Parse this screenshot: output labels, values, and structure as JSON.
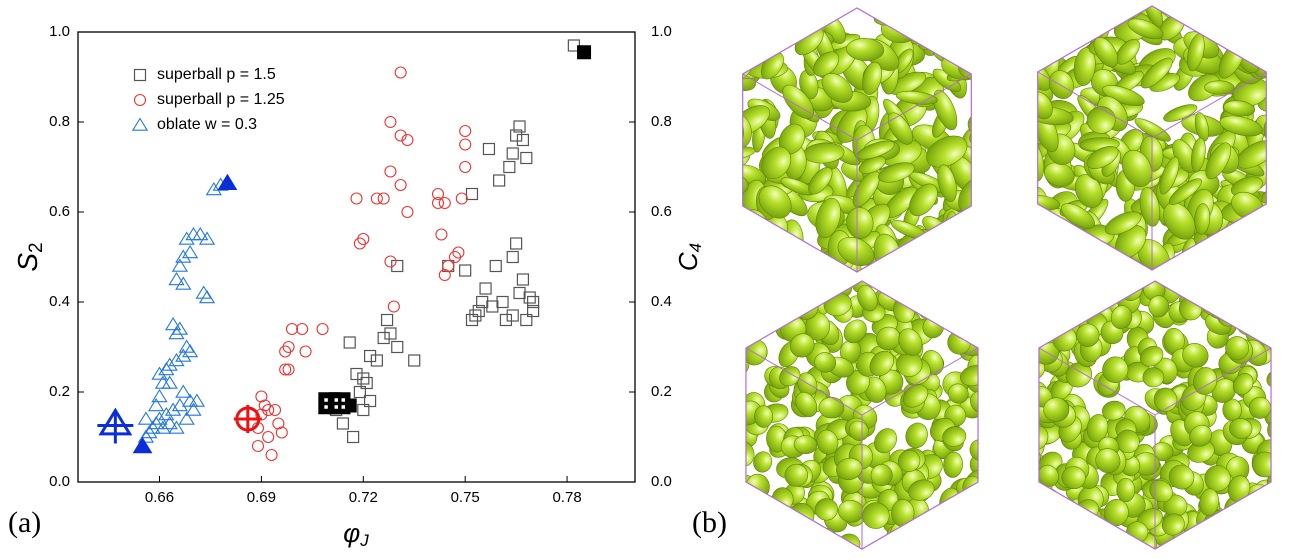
{
  "chart_data": {
    "type": "scatter",
    "panel_label": "(a)",
    "xlabel": {
      "main": "φ",
      "sub": "J"
    },
    "ylabel": {
      "main": "S",
      "sub": "2"
    },
    "y2label": {
      "main": "C",
      "sub": "4"
    },
    "xlim": [
      0.636,
      0.8
    ],
    "xticks": [
      0.66,
      0.69,
      0.72,
      0.75,
      0.78
    ],
    "ylim": [
      0,
      1
    ],
    "yticks": [
      {
        "value": 0,
        "label": "0.0"
      },
      0.2,
      0.4,
      0.6,
      0.8,
      {
        "value": 1,
        "label": "1.0"
      }
    ],
    "y2lim": [
      0,
      1
    ],
    "y2ticks": [
      {
        "value": 0,
        "label": "0.0"
      },
      0.2,
      0.4,
      0.6,
      0.8,
      {
        "value": 1,
        "label": "1.0"
      }
    ],
    "legend": "upper left",
    "series": [
      {
        "name": "superball p = 1.5",
        "color": "#555555",
        "marker": "square",
        "x": [
          0.782,
          0.757,
          0.752,
          0.765,
          0.766,
          0.767,
          0.763,
          0.768,
          0.76,
          0.764,
          0.765,
          0.764,
          0.759,
          0.745,
          0.75,
          0.73,
          0.767,
          0.766,
          0.769,
          0.77,
          0.77,
          0.768,
          0.762,
          0.764,
          0.761,
          0.756,
          0.755,
          0.754,
          0.753,
          0.752,
          0.758,
          0.727,
          0.726,
          0.728,
          0.73,
          0.724,
          0.722,
          0.735,
          0.72,
          0.718,
          0.721,
          0.719,
          0.722,
          0.72,
          0.716,
          0.712,
          0.714,
          0.717
        ],
        "values": [
          0.97,
          0.74,
          0.64,
          0.77,
          0.79,
          0.76,
          0.7,
          0.72,
          0.67,
          0.73,
          0.53,
          0.5,
          0.48,
          0.48,
          0.47,
          0.48,
          0.45,
          0.42,
          0.41,
          0.4,
          0.38,
          0.36,
          0.36,
          0.37,
          0.4,
          0.43,
          0.4,
          0.38,
          0.37,
          0.36,
          0.39,
          0.36,
          0.32,
          0.33,
          0.3,
          0.27,
          0.28,
          0.27,
          0.23,
          0.24,
          0.22,
          0.2,
          0.18,
          0.16,
          0.31,
          0.16,
          0.13,
          0.1
        ]
      },
      {
        "name": "superball p = 1.25",
        "color": "#ee3333",
        "marker": "circle",
        "x": [
          0.731,
          0.728,
          0.731,
          0.733,
          0.75,
          0.75,
          0.728,
          0.731,
          0.726,
          0.724,
          0.718,
          0.742,
          0.744,
          0.742,
          0.75,
          0.749,
          0.733,
          0.743,
          0.72,
          0.719,
          0.748,
          0.747,
          0.745,
          0.744,
          0.728,
          0.729,
          0.699,
          0.702,
          0.708,
          0.698,
          0.697,
          0.703,
          0.697,
          0.698,
          0.69,
          0.691,
          0.692,
          0.694,
          0.695,
          0.69,
          0.689,
          0.692,
          0.689,
          0.693,
          0.696
        ],
        "values": [
          0.91,
          0.8,
          0.77,
          0.76,
          0.78,
          0.75,
          0.69,
          0.66,
          0.63,
          0.63,
          0.63,
          0.64,
          0.62,
          0.62,
          0.7,
          0.63,
          0.6,
          0.55,
          0.54,
          0.53,
          0.51,
          0.5,
          0.48,
          0.46,
          0.49,
          0.39,
          0.34,
          0.34,
          0.34,
          0.3,
          0.29,
          0.29,
          0.25,
          0.25,
          0.19,
          0.17,
          0.16,
          0.16,
          0.13,
          0.15,
          0.12,
          0.1,
          0.08,
          0.06,
          0.11
        ]
      },
      {
        "name": "oblate w = 0.3",
        "color": "#2277dd",
        "marker": "triangle",
        "x": [
          0.676,
          0.678,
          0.67,
          0.672,
          0.674,
          0.668,
          0.669,
          0.667,
          0.666,
          0.665,
          0.667,
          0.673,
          0.674,
          0.664,
          0.665,
          0.666,
          0.668,
          0.669,
          0.667,
          0.665,
          0.663,
          0.662,
          0.66,
          0.661,
          0.663,
          0.667,
          0.669,
          0.666,
          0.664,
          0.662,
          0.66,
          0.659,
          0.658,
          0.657,
          0.656,
          0.661,
          0.663,
          0.665,
          0.668,
          0.67,
          0.671,
          0.659,
          0.66,
          0.656
        ],
        "values": [
          0.65,
          0.66,
          0.55,
          0.55,
          0.54,
          0.54,
          0.51,
          0.5,
          0.48,
          0.45,
          0.44,
          0.42,
          0.41,
          0.35,
          0.33,
          0.34,
          0.3,
          0.29,
          0.28,
          0.27,
          0.26,
          0.25,
          0.24,
          0.22,
          0.22,
          0.2,
          0.18,
          0.17,
          0.16,
          0.15,
          0.14,
          0.13,
          0.12,
          0.11,
          0.1,
          0.12,
          0.13,
          0.12,
          0.14,
          0.16,
          0.18,
          0.17,
          0.19,
          0.14
        ]
      },
      {
        "color": "#000000",
        "marker": "square-filled",
        "x": [
          0.785,
          0.716
        ],
        "values": [
          0.955,
          0.17
        ]
      },
      {
        "color": "#000000",
        "marker": "square-grid",
        "x": [
          0.71,
          0.713
        ],
        "values": [
          0.175,
          0.175
        ]
      },
      {
        "color": "#ee1111",
        "marker": "circle-cross",
        "x": [
          0.686
        ],
        "values": [
          0.14
        ]
      },
      {
        "color": "#0a2fd8",
        "marker": "triangle-filled",
        "x": [
          0.68,
          0.655
        ],
        "values": [
          0.665,
          0.08
        ]
      },
      {
        "color": "#0a2fd8",
        "marker": "triangle-cross",
        "x": [
          0.647
        ],
        "values": [
          0.13
        ]
      }
    ]
  },
  "render_panel": {
    "panel_label": "(b)"
  }
}
